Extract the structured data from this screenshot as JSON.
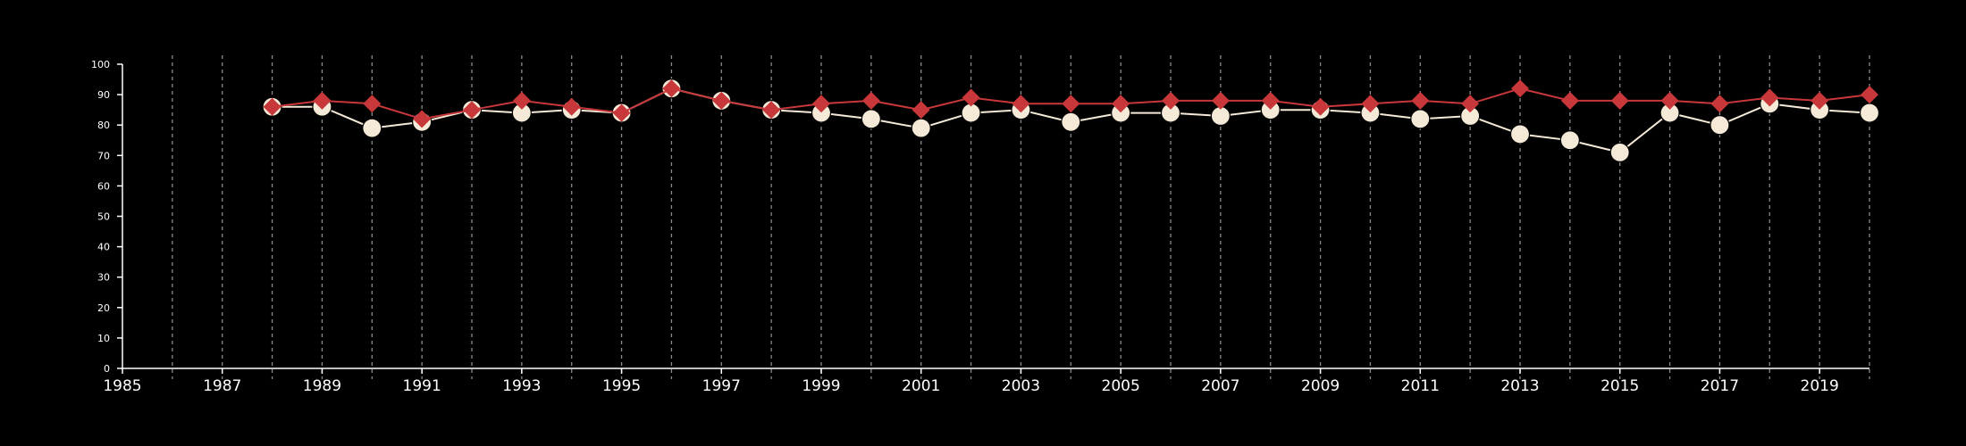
{
  "chart_data": {
    "type": "line",
    "title": "",
    "xlabel": "",
    "ylabel": "",
    "xlim": [
      1985,
      2020
    ],
    "ylim": [
      0,
      100
    ],
    "x_ticks": [
      1985,
      1987,
      1989,
      1991,
      1993,
      1995,
      1997,
      1999,
      2001,
      2003,
      2005,
      2007,
      2009,
      2011,
      2013,
      2015,
      2017,
      2019
    ],
    "x_tick_labels": [
      "1985",
      "1987",
      "1989",
      "1991",
      "1993",
      "1995",
      "1997",
      "1999",
      "2001",
      "2003",
      "2005",
      "2007",
      "2009",
      "2011",
      "2013",
      "2015",
      "2017",
      "2019"
    ],
    "y_ticks": [
      0,
      10,
      20,
      30,
      40,
      50,
      60,
      70,
      80,
      90,
      100
    ],
    "y_tick_labels": [
      "0",
      "10",
      "20",
      "30",
      "40",
      "50",
      "60",
      "70",
      "80",
      "90",
      "100"
    ],
    "grid": "vertical dashed lines at each year",
    "legend": "none",
    "x": [
      1988,
      1989,
      1990,
      1991,
      1992,
      1993,
      1994,
      1995,
      1996,
      1997,
      1998,
      1999,
      2000,
      2001,
      2002,
      2003,
      2004,
      2005,
      2006,
      2007,
      2008,
      2009,
      2010,
      2011,
      2012,
      2013,
      2014,
      2015,
      2016,
      2017,
      2018,
      2019,
      2020
    ],
    "series": [
      {
        "values": [
          86,
          86,
          79,
          81,
          85,
          84,
          85,
          84,
          92,
          88,
          85,
          84,
          82,
          79,
          84,
          85,
          81,
          84,
          84,
          83,
          85,
          85,
          84,
          82,
          83,
          77,
          75,
          71,
          84,
          80,
          87,
          85,
          84
        ],
        "color": "#f5e9d8",
        "marker": "circle"
      },
      {
        "values": [
          86,
          88,
          87,
          82,
          85,
          88,
          86,
          84,
          92,
          88,
          85,
          87,
          88,
          85,
          89,
          87,
          87,
          87,
          88,
          88,
          88,
          86,
          87,
          88,
          87,
          92,
          88,
          88,
          88,
          87,
          89,
          88,
          90
        ],
        "color": "#c8373a",
        "marker": "diamond"
      }
    ]
  }
}
